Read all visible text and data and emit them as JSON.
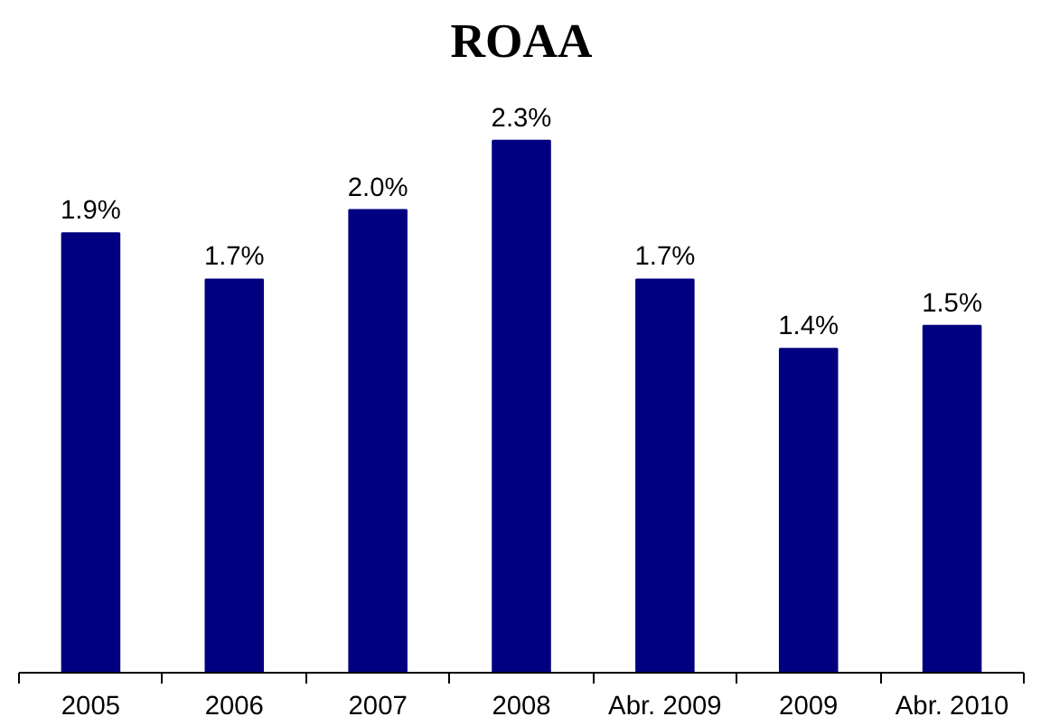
{
  "chart_data": {
    "type": "bar",
    "title": "ROAA",
    "categories": [
      "2005",
      "2006",
      "2007",
      "2008",
      "Abr. 2009",
      "2009",
      "Abr. 2010"
    ],
    "values": [
      1.9,
      1.7,
      2.0,
      2.3,
      1.7,
      1.4,
      1.5
    ],
    "value_labels": [
      "1.9%",
      "1.7%",
      "2.0%",
      "2.3%",
      "1.7%",
      "1.4%",
      "1.5%"
    ],
    "color": "#000080"
  }
}
